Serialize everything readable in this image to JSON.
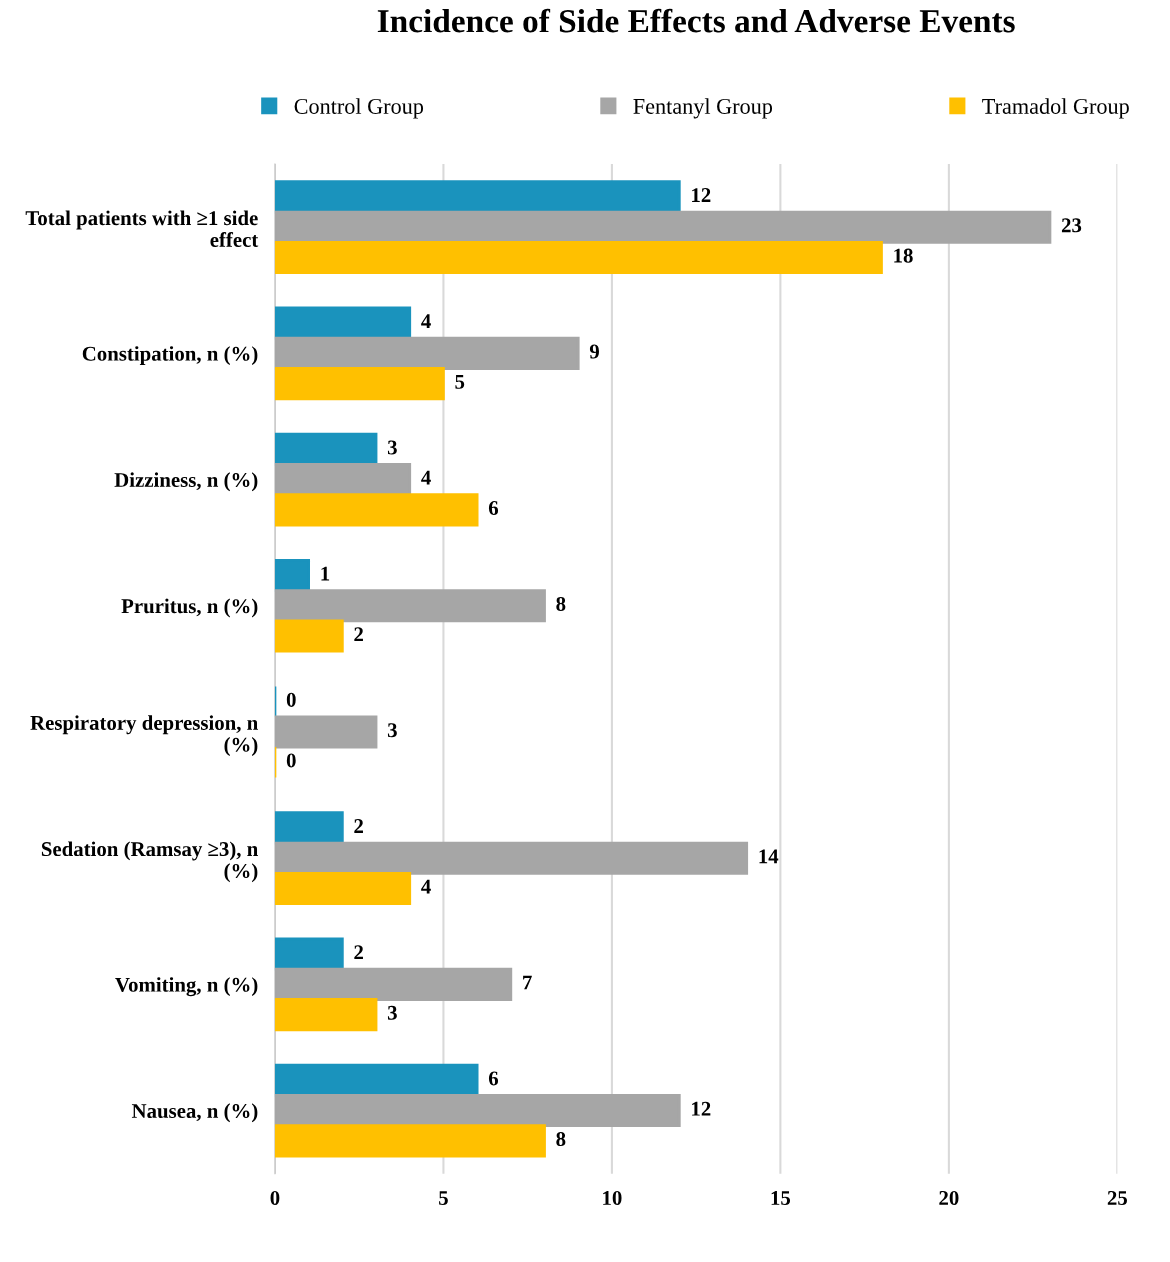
{
  "chart_data": {
    "type": "bar",
    "orientation": "horizontal",
    "title": "Incidence of Side Effects and Adverse Events",
    "categories": [
      "Total patients with ≥1 side effect",
      "Constipation, n (%)",
      "Dizziness, n (%)",
      "Pruritus, n (%)",
      "Respiratory depression, n (%)",
      "Sedation (Ramsay ≥3), n (%)",
      "Vomiting, n (%)",
      "Nausea, n (%)"
    ],
    "series": [
      {
        "name": "Control Group",
        "color": "#1a93bd",
        "values": [
          12,
          4,
          3,
          1,
          0,
          2,
          2,
          6
        ]
      },
      {
        "name": "Fentanyl Group",
        "color": "#a6a6a6",
        "values": [
          23,
          9,
          4,
          8,
          3,
          14,
          7,
          12
        ]
      },
      {
        "name": "Tramadol Group",
        "color": "#ffc000",
        "values": [
          18,
          5,
          6,
          2,
          0,
          4,
          3,
          8
        ]
      }
    ],
    "xlim": [
      0,
      25
    ],
    "xticks": [
      0,
      5,
      10,
      15,
      20,
      25
    ],
    "grid": "x",
    "legend": "top",
    "data_labels": true
  }
}
